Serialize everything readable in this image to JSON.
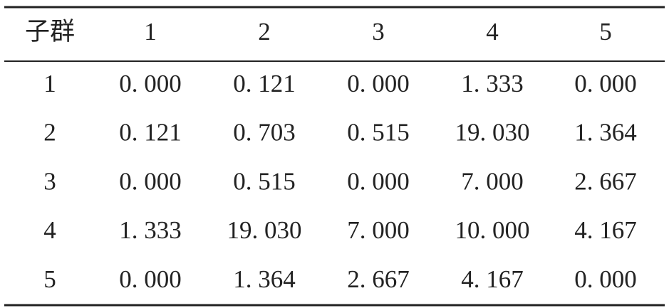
{
  "table": {
    "header": [
      "子群",
      "1",
      "2",
      "3",
      "4",
      "5"
    ],
    "rows": [
      [
        "1",
        "0. 000",
        "0. 121",
        "0. 000",
        "1. 333",
        "0. 000"
      ],
      [
        "2",
        "0. 121",
        "0. 703",
        "0. 515",
        "19. 030",
        "1. 364"
      ],
      [
        "3",
        "0. 000",
        "0. 515",
        "0. 000",
        "7. 000",
        "2. 667"
      ],
      [
        "4",
        "1. 333",
        "19. 030",
        "7. 000",
        "10. 000",
        "4. 167"
      ],
      [
        "5",
        "0. 000",
        "1. 364",
        "2. 667",
        "4. 167",
        "0. 000"
      ]
    ]
  }
}
